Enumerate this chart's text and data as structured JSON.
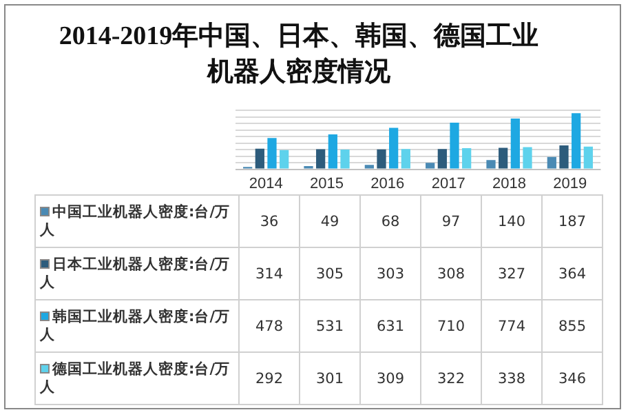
{
  "chart_data": {
    "type": "bar",
    "title": "2014-2019年中国、日本、韩国、德国工业机器人密度情况",
    "categories": [
      "2014",
      "2015",
      "2016",
      "2017",
      "2018",
      "2019"
    ],
    "series": [
      {
        "name": "中国工业机器人密度:台/万人",
        "color": "#4a8ab4",
        "values": [
          36,
          49,
          68,
          97,
          140,
          187
        ]
      },
      {
        "name": "日本工业机器人密度:台/万人",
        "color": "#2d5c7c",
        "values": [
          314,
          305,
          303,
          308,
          327,
          364
        ]
      },
      {
        "name": "韩国工业机器人密度:台/万人",
        "color": "#1ea8e2",
        "values": [
          478,
          531,
          631,
          710,
          774,
          855
        ]
      },
      {
        "name": "德国工业机器人密度:台/万人",
        "color": "#5ed2ec",
        "values": [
          292,
          301,
          309,
          322,
          338,
          346
        ]
      }
    ],
    "ylim": [
      0,
      900
    ],
    "yticks": [
      {
        "value": 0,
        "label": null
      },
      {
        "value": 100,
        "label": null
      },
      {
        "value": 200,
        "label": null
      },
      {
        "value": 300,
        "label": null
      },
      {
        "value": 400,
        "label": null
      },
      {
        "value": 500,
        "label": null
      },
      {
        "value": 600,
        "label": null
      },
      {
        "value": 700,
        "label": null
      },
      {
        "value": 800,
        "label": null
      },
      {
        "value": 900,
        "label": null
      }
    ],
    "grid": "y",
    "tick_labels": "x",
    "data_labels": true,
    "legend": "bottom left"
  }
}
